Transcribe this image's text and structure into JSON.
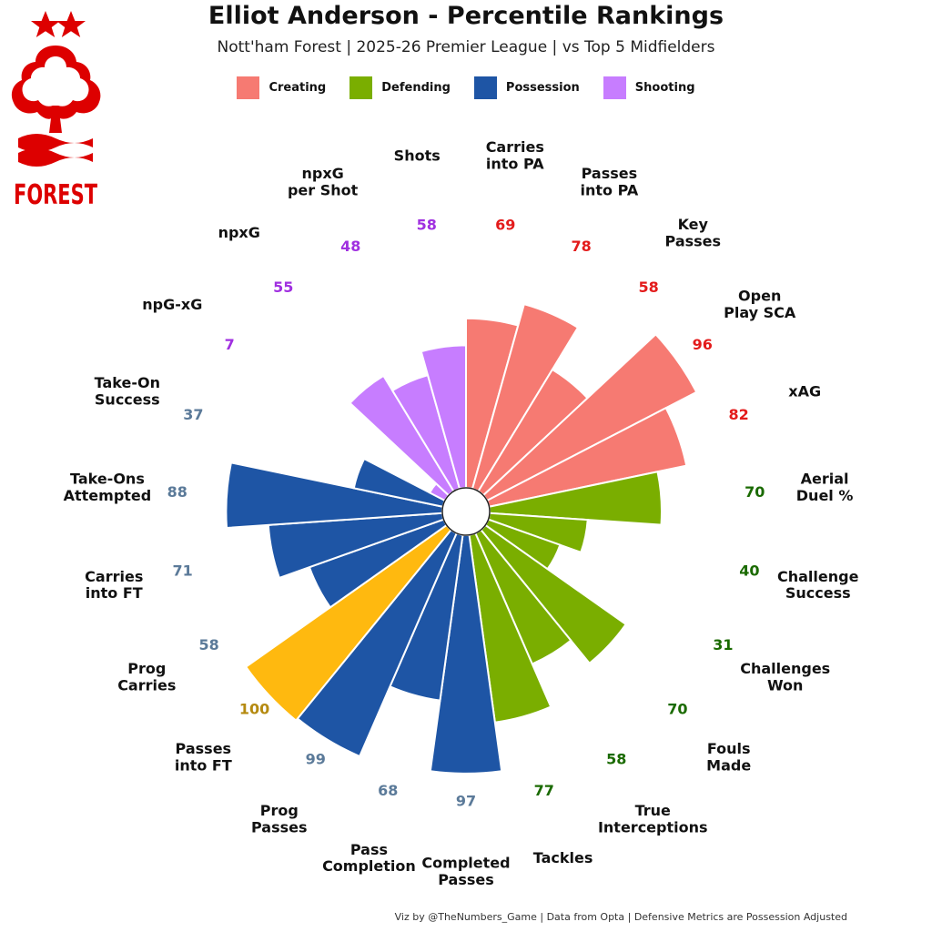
{
  "title": "Elliot Anderson - Percentile Rankings",
  "subtitle": "Nott'ham Forest | 2025-26 Premier League | vs Top 5 Midfielders",
  "footer": "Viz by @TheNumbers_Game | Data from Opta | Defensive Metrics are Possession Adjusted",
  "logo_text": "FOREST",
  "colors": {
    "creating": "#F67A72",
    "defending": "#7AAE00",
    "possession": "#1E55A5",
    "shooting": "#C77DFF",
    "highlight": "#FFB90F",
    "creating_label": "#E31B1B",
    "defending_label": "#1A6A00",
    "possession_label": "#5B7A99",
    "shooting_label": "#A030E0",
    "highlight_label": "#B58A10",
    "logo_red": "#DD0000"
  },
  "legend": [
    {
      "key": "creating",
      "label": "Creating"
    },
    {
      "key": "defending",
      "label": "Defending"
    },
    {
      "key": "possession",
      "label": "Possession"
    },
    {
      "key": "shooting",
      "label": "Shooting"
    }
  ],
  "chart_data": {
    "type": "bar",
    "polar": true,
    "ylim": [
      0,
      100
    ],
    "metrics": [
      {
        "name": "Carries into PA",
        "value": 69,
        "group": "creating"
      },
      {
        "name": "Passes into PA",
        "value": 78,
        "group": "creating"
      },
      {
        "name": "Key Passes",
        "value": 58,
        "group": "creating"
      },
      {
        "name": "Open Play SCA",
        "value": 96,
        "group": "creating"
      },
      {
        "name": "xAG",
        "value": 82,
        "group": "creating"
      },
      {
        "name": "Aerial Duel %",
        "value": 70,
        "group": "defending"
      },
      {
        "name": "Challenge Success",
        "value": 40,
        "group": "defending"
      },
      {
        "name": "Challenges Won",
        "value": 31,
        "group": "defending"
      },
      {
        "name": "Fouls Made",
        "value": 70,
        "group": "defending"
      },
      {
        "name": "True Interceptions",
        "value": 58,
        "group": "defending"
      },
      {
        "name": "Tackles",
        "value": 77,
        "group": "defending"
      },
      {
        "name": "Completed Passes",
        "value": 97,
        "group": "possession"
      },
      {
        "name": "Pass Completion",
        "value": 68,
        "group": "possession"
      },
      {
        "name": "Prog Passes",
        "value": 99,
        "group": "possession"
      },
      {
        "name": "Passes into FT",
        "value": 100,
        "group": "highlight"
      },
      {
        "name": "Prog Carries",
        "value": 58,
        "group": "possession"
      },
      {
        "name": "Carries into FT",
        "value": 71,
        "group": "possession"
      },
      {
        "name": "Take-Ons Attempted",
        "value": 88,
        "group": "possession"
      },
      {
        "name": "Take-On Success",
        "value": 37,
        "group": "possession"
      },
      {
        "name": "npG-xG",
        "value": 7,
        "group": "shooting"
      },
      {
        "name": "npxG",
        "value": 55,
        "group": "shooting"
      },
      {
        "name": "npxG per Shot",
        "value": 48,
        "group": "shooting"
      },
      {
        "name": "Shots",
        "value": 58,
        "group": "shooting"
      }
    ]
  }
}
